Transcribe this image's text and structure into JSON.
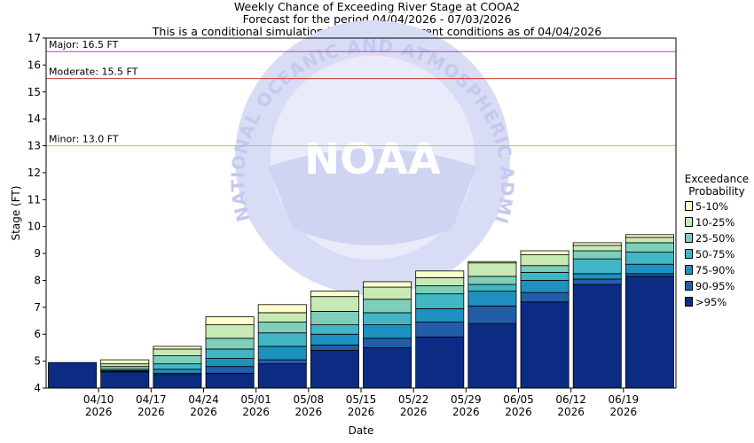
{
  "header": {
    "line1": "Weekly Chance of Exceeding River Stage at COOA2",
    "line2": "Forecast for the period 04/04/2026 - 07/03/2026",
    "line3": "This is a conditional simulation based on the current conditions as of 04/04/2026"
  },
  "legend": {
    "title_line1": "Exceedance",
    "title_line2": "Probability",
    "items": [
      {
        "label": "5-10%",
        "color": "#ffffcc"
      },
      {
        "label": "10-25%",
        "color": "#c7e9b4"
      },
      {
        "label": "25-50%",
        "color": "#7fcdbb"
      },
      {
        "label": "50-75%",
        "color": "#41b6c4"
      },
      {
        "label": "75-90%",
        "color": "#1d91c0"
      },
      {
        "label": "90-95%",
        "color": "#225ea8"
      },
      {
        "label": ">95%",
        "color": "#0c2c84"
      }
    ]
  },
  "watermark": {
    "text": "NATIONAL OCEANIC AND ATMOSPHERIC ADMINISTRATION",
    "logo": "NOAA"
  },
  "chart_data": {
    "type": "bar",
    "xlabel": "Date",
    "ylabel": "Stage (FT)",
    "ylim": [
      4,
      17
    ],
    "yticks": [
      4,
      5,
      6,
      7,
      8,
      9,
      10,
      11,
      12,
      13,
      14,
      15,
      16,
      17
    ],
    "x_tick_labels": [
      {
        "date": "04/10",
        "year": "2026"
      },
      {
        "date": "04/17",
        "year": "2026"
      },
      {
        "date": "04/24",
        "year": "2026"
      },
      {
        "date": "05/01",
        "year": "2026"
      },
      {
        "date": "05/08",
        "year": "2026"
      },
      {
        "date": "05/15",
        "year": "2026"
      },
      {
        "date": "05/22",
        "year": "2026"
      },
      {
        "date": "05/29",
        "year": "2026"
      },
      {
        "date": "06/05",
        "year": "2026"
      },
      {
        "date": "06/12",
        "year": "2026"
      },
      {
        "date": "06/19",
        "year": "2026"
      }
    ],
    "thresholds": [
      {
        "label": "Major: 16.5 FT",
        "value": 16.5,
        "color": "#cc33cc"
      },
      {
        "label": "Moderate: 15.5 FT",
        "value": 15.5,
        "color": "#cc3333"
      },
      {
        "label": "Minor: 13.0 FT",
        "value": 13.0,
        "color": "#e8c000"
      }
    ],
    "band_labels": [
      "95%",
      "90%",
      "75%",
      "50%",
      "25%",
      "10%",
      "5%"
    ],
    "weeks": [
      {
        "bounds": [
          4.95,
          4.95,
          4.95,
          4.95,
          4.95,
          4.95,
          4.95
        ]
      },
      {
        "bounds": [
          4.6,
          4.62,
          4.65,
          4.7,
          4.8,
          4.9,
          5.05
        ]
      },
      {
        "bounds": [
          4.5,
          4.55,
          4.7,
          4.9,
          5.2,
          5.45,
          5.55
        ]
      },
      {
        "bounds": [
          4.55,
          4.8,
          5.1,
          5.45,
          5.85,
          6.35,
          6.65
        ]
      },
      {
        "bounds": [
          4.9,
          5.05,
          5.55,
          6.05,
          6.45,
          6.8,
          7.1
        ]
      },
      {
        "bounds": [
          5.4,
          5.6,
          6.0,
          6.35,
          6.85,
          7.4,
          7.6
        ]
      },
      {
        "bounds": [
          5.5,
          5.85,
          6.35,
          6.8,
          7.3,
          7.75,
          7.95
        ]
      },
      {
        "bounds": [
          5.9,
          6.45,
          6.95,
          7.5,
          7.8,
          8.1,
          8.35
        ]
      },
      {
        "bounds": [
          6.4,
          7.05,
          7.6,
          7.85,
          8.15,
          8.65,
          8.7
        ]
      },
      {
        "bounds": [
          7.2,
          7.55,
          8.0,
          8.3,
          8.55,
          8.95,
          9.1
        ]
      },
      {
        "bounds": [
          7.85,
          8.05,
          8.25,
          8.8,
          9.1,
          9.3,
          9.4
        ]
      },
      {
        "bounds": [
          8.15,
          8.25,
          8.6,
          9.05,
          9.4,
          9.6,
          9.7
        ]
      }
    ],
    "grid": false,
    "legend_position": "right"
  }
}
